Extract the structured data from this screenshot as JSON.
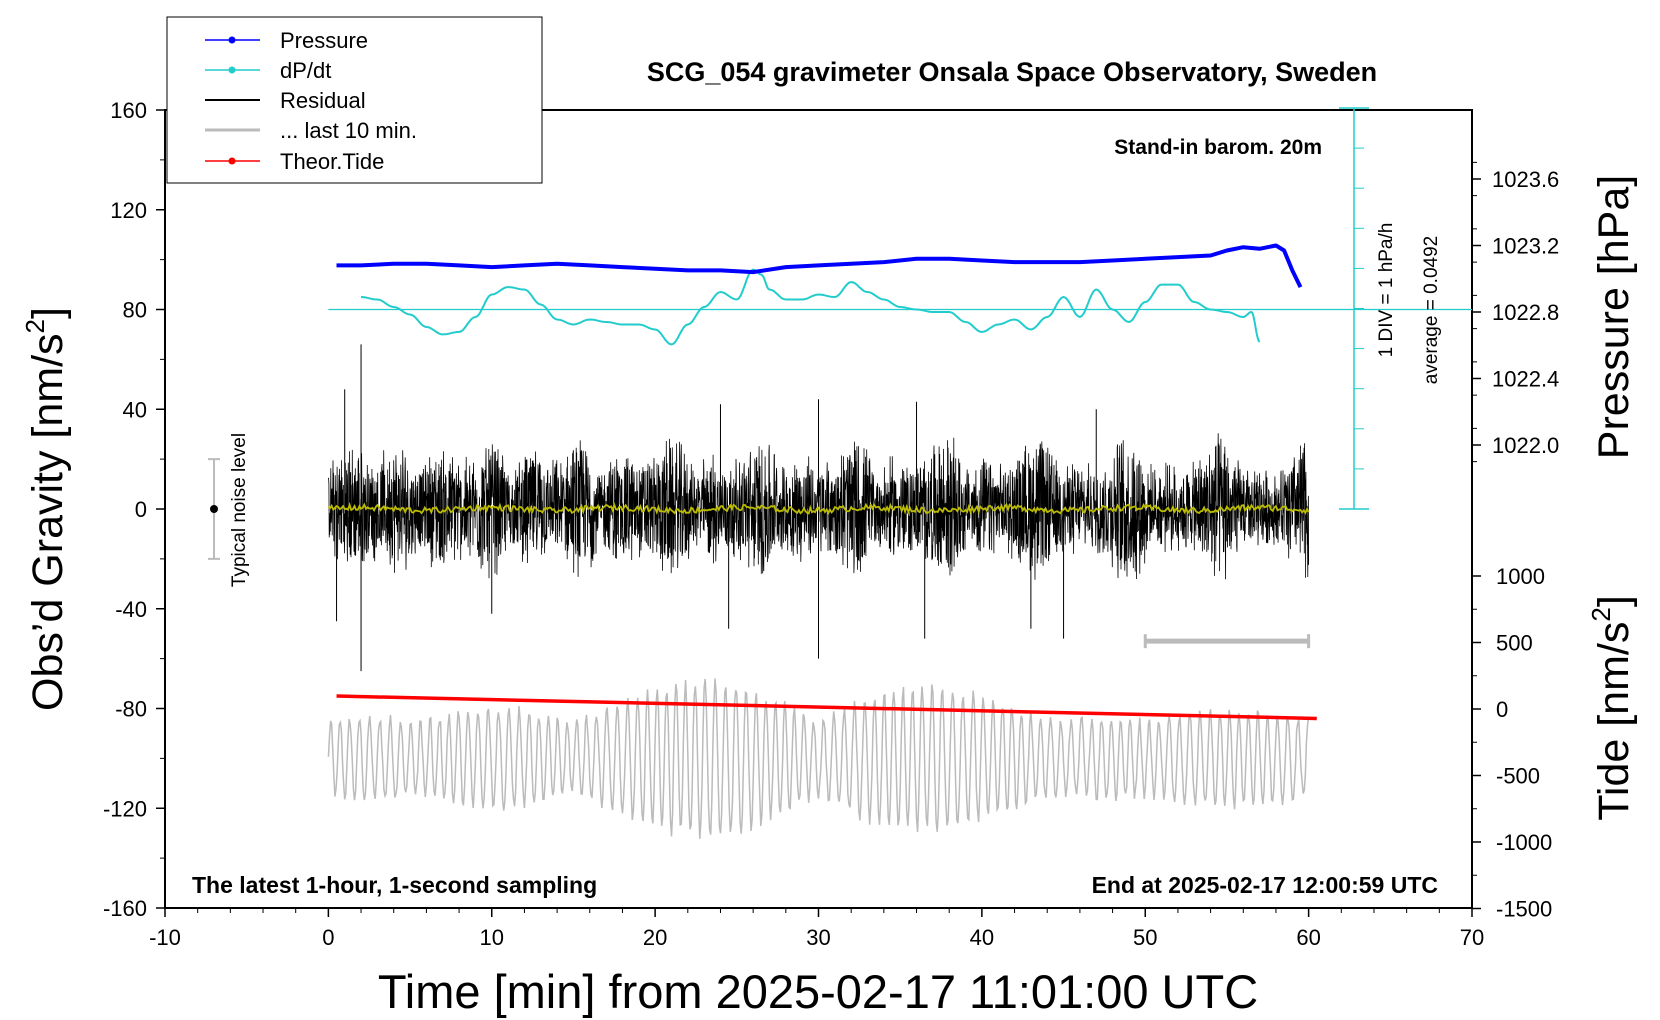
{
  "chart_data": {
    "type": "line",
    "title": "SCG_054 gravimeter Onsala Space Observatory, Sweden",
    "xlabel": "Time [min] from 2025-02-17 11:01:00 UTC",
    "ylabel_left": "Obs’d Gravity [nm/s",
    "ylabel_left_sup": "2",
    "ylabel_left_end": "]",
    "ylabel_right_pressure": "Pressure [hPa]",
    "ylabel_right_tide": "Tide [nm/s",
    "ylabel_right_tide_sup": "2",
    "ylabel_right_tide_end": "]",
    "xlim": [
      -10,
      70
    ],
    "ylim": [
      -160,
      160
    ],
    "x_ticks": [
      "-10",
      "0",
      "10",
      "20",
      "30",
      "40",
      "50",
      "60",
      "70"
    ],
    "y_ticks": [
      "160",
      "120",
      "80",
      "40",
      "0",
      "-40",
      "-80",
      "-120",
      "-160"
    ],
    "pressure_ticks": [
      "1023.6",
      "1023.2",
      "1022.8",
      "1022.4",
      "1022.0"
    ],
    "pressure_tick_values": [
      1023.6,
      1023.2,
      1022.8,
      1022.4,
      1022.0
    ],
    "tide_ticks": [
      "1000",
      "500",
      "0",
      "-500",
      "-1000",
      "-1500"
    ],
    "tide_tick_values": [
      1000,
      500,
      0,
      -500,
      -1000,
      -1500
    ],
    "legend": [
      {
        "label": "Pressure",
        "color": "#0000ff",
        "marker": true
      },
      {
        "label": "dP/dt",
        "color": "#22cccc",
        "marker": true
      },
      {
        "label": "Residual",
        "color": "#000000",
        "marker": false
      },
      {
        "label": "... last 10 min.",
        "color": "#bbbbbb",
        "marker": false
      },
      {
        "label": "Theor.Tide",
        "color": "#ff0000",
        "marker": true
      }
    ],
    "annotations": {
      "stand_in": "Stand-in barom. 20m",
      "div_label": "1 DIV = 1 hPa/h",
      "average_label": "average = 0.0492",
      "noise_label": "Typical noise level",
      "bottom_left": "The latest 1-hour, 1-second sampling",
      "bottom_right": "End at 2025-02-17 12:00:59 UTC"
    },
    "series": [
      {
        "name": "Pressure",
        "color": "#0000ff",
        "unit": "hPa",
        "x": [
          0.5,
          2,
          4,
          6,
          8,
          10,
          12,
          14,
          16,
          18,
          20,
          22,
          24,
          26,
          28,
          30,
          32,
          34,
          36,
          38,
          40,
          42,
          44,
          46,
          48,
          50,
          52,
          54,
          55,
          56,
          57,
          58,
          58.5,
          59,
          59.5
        ],
        "values": [
          1023.08,
          1023.08,
          1023.09,
          1023.09,
          1023.08,
          1023.07,
          1023.08,
          1023.09,
          1023.08,
          1023.07,
          1023.06,
          1023.05,
          1023.05,
          1023.04,
          1023.07,
          1023.08,
          1023.09,
          1023.1,
          1023.12,
          1023.12,
          1023.11,
          1023.1,
          1023.1,
          1023.1,
          1023.11,
          1023.12,
          1023.13,
          1023.14,
          1023.17,
          1023.19,
          1023.18,
          1023.2,
          1023.17,
          1023.05,
          1022.95
        ]
      },
      {
        "name": "dP/dt",
        "color": "#22cccc",
        "unit": "nm/s2 (scaled)",
        "x": [
          2,
          3,
          4,
          5,
          6,
          7,
          8,
          9,
          10,
          11,
          12,
          13,
          14,
          15,
          16,
          17,
          18,
          19,
          20,
          21,
          22,
          23,
          24,
          25,
          26,
          26.5,
          27,
          28,
          29,
          30,
          31,
          32,
          33,
          34,
          35,
          36,
          37,
          38,
          39,
          40,
          41,
          42,
          43,
          44,
          45,
          46,
          47,
          48,
          49,
          50,
          51,
          52,
          53,
          54,
          55,
          56,
          56.5,
          57
        ],
        "values": [
          85,
          84,
          81,
          78,
          73,
          70,
          71,
          77,
          86,
          89,
          88,
          82,
          76,
          74,
          76,
          75,
          74,
          74,
          72,
          66,
          74,
          81,
          87,
          84,
          96,
          94,
          88,
          84,
          84,
          86,
          85,
          91,
          87,
          84,
          81,
          80,
          79,
          79,
          75,
          71,
          74,
          76,
          72,
          77,
          85,
          77,
          88,
          80,
          75,
          83,
          90,
          90,
          83,
          80,
          79,
          77,
          79,
          67
        ]
      },
      {
        "name": "Residual",
        "color": "#000000",
        "unit": "nm/s2",
        "x_range": [
          0,
          60
        ],
        "envelope": [
          -40,
          40
        ],
        "peaks": [
          [
            0.5,
            -45
          ],
          [
            1,
            48
          ],
          [
            2,
            -65
          ],
          [
            2,
            66
          ],
          [
            10,
            -42
          ],
          [
            24,
            42
          ],
          [
            24.5,
            -48
          ],
          [
            30,
            44
          ],
          [
            30,
            -60
          ],
          [
            36,
            43
          ],
          [
            36.5,
            -52
          ],
          [
            43,
            -48
          ],
          [
            45,
            -52
          ],
          [
            47,
            40
          ]
        ]
      },
      {
        "name": "... last 10 min.",
        "color": "#bbbbbb",
        "unit": "nm/s2",
        "x_range": [
          0,
          60
        ],
        "values_range": [
          -135,
          -68
        ]
      },
      {
        "name": "Theor.Tide",
        "color": "#ff0000",
        "unit": "nm/s2",
        "x": [
          0.5,
          60.5
        ],
        "values": [
          -75,
          -84
        ]
      },
      {
        "name": "Residual mean",
        "color": "#bbbb00",
        "unit": "nm/s2",
        "x_range": [
          0,
          60
        ],
        "values_range": [
          -2,
          2
        ]
      }
    ]
  }
}
